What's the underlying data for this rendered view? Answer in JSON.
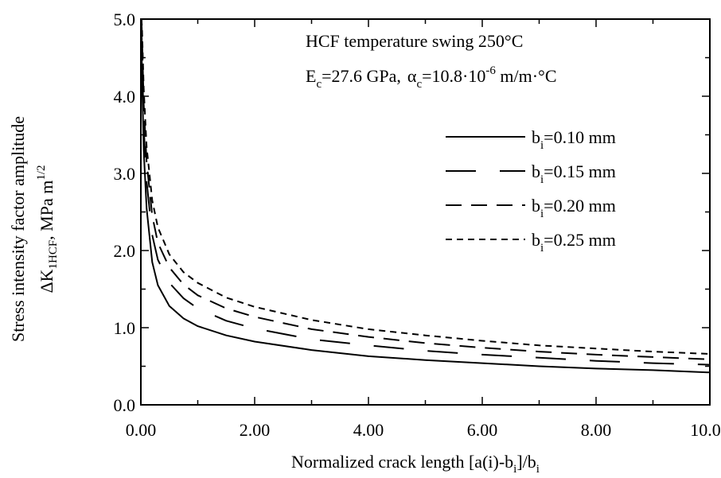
{
  "chart_data": {
    "type": "line",
    "ylabel_line1": "Stress intensity factor amplitude",
    "ylabel_line2": {
      "prefix": "ΔK",
      "sub": "1HCF",
      "middle": ", MPa m",
      "sup": "1/2"
    },
    "xlabel": {
      "prefix": "Normalized crack length [a(i)-b",
      "sub1": "i",
      "middle": "]/b",
      "sub2": "i"
    },
    "annotations": {
      "line1": "HCF temperature swing 250°C",
      "line2": {
        "e": "E",
        "e_sub": "c",
        "e_val": "=27.6 GPa,",
        "alpha": "α",
        "alpha_sub": "c",
        "alpha_val": "=10.8·10",
        "alpha_sup": "-6",
        "alpha_unit": " m/m·°C"
      }
    },
    "xlim": [
      0,
      10
    ],
    "ylim": [
      0,
      5
    ],
    "xticks": [
      "0.00",
      "2.00",
      "4.00",
      "6.00",
      "8.00",
      "10.00"
    ],
    "yticks": [
      "0.0",
      "1.0",
      "2.0",
      "3.0",
      "4.0",
      "5.0"
    ],
    "grid": false,
    "legend_position": "top-right",
    "series": [
      {
        "name": {
          "b": "b",
          "sub": "i",
          "rest": "=0.10 mm"
        },
        "dash": "solid",
        "x": [
          0.01,
          0.02,
          0.05,
          0.1,
          0.2,
          0.3,
          0.5,
          0.75,
          1.0,
          1.5,
          2.0,
          3.0,
          4.0,
          5.0,
          6.0,
          7.0,
          8.0,
          9.0,
          10.0
        ],
        "y": [
          4.95,
          4.3,
          3.3,
          2.55,
          1.85,
          1.55,
          1.28,
          1.12,
          1.02,
          0.9,
          0.82,
          0.71,
          0.63,
          0.58,
          0.54,
          0.5,
          0.47,
          0.45,
          0.42
        ]
      },
      {
        "name": {
          "b": "b",
          "sub": "i",
          "rest": "=0.15 mm"
        },
        "dash": "long",
        "x": [
          0.01,
          0.02,
          0.05,
          0.1,
          0.2,
          0.3,
          0.5,
          0.75,
          1.0,
          1.5,
          2.0,
          3.0,
          4.0,
          5.0,
          6.0,
          7.0,
          8.0,
          9.0,
          10.0
        ],
        "y": [
          5.0,
          4.6,
          3.6,
          2.9,
          2.2,
          1.88,
          1.58,
          1.38,
          1.25,
          1.09,
          0.99,
          0.85,
          0.77,
          0.7,
          0.65,
          0.61,
          0.57,
          0.54,
          0.52
        ]
      },
      {
        "name": {
          "b": "b",
          "sub": "i",
          "rest": "=0.20 mm"
        },
        "dash": "medium",
        "x": [
          0.01,
          0.02,
          0.05,
          0.1,
          0.2,
          0.3,
          0.5,
          0.75,
          1.0,
          1.5,
          2.0,
          3.0,
          4.0,
          5.0,
          6.0,
          7.0,
          8.0,
          9.0,
          10.0
        ],
        "y": [
          5.0,
          4.8,
          3.9,
          3.15,
          2.45,
          2.1,
          1.78,
          1.56,
          1.42,
          1.25,
          1.14,
          0.98,
          0.88,
          0.8,
          0.74,
          0.69,
          0.65,
          0.62,
          0.59
        ]
      },
      {
        "name": {
          "b": "b",
          "sub": "i",
          "rest": "=0.25 mm"
        },
        "dash": "short",
        "x": [
          0.01,
          0.02,
          0.05,
          0.1,
          0.2,
          0.3,
          0.5,
          0.75,
          1.0,
          1.5,
          2.0,
          3.0,
          4.0,
          5.0,
          6.0,
          7.0,
          8.0,
          9.0,
          10.0
        ],
        "y": [
          5.0,
          4.9,
          4.1,
          3.35,
          2.65,
          2.3,
          1.95,
          1.72,
          1.58,
          1.39,
          1.27,
          1.1,
          0.98,
          0.9,
          0.83,
          0.77,
          0.73,
          0.69,
          0.66
        ]
      }
    ]
  }
}
